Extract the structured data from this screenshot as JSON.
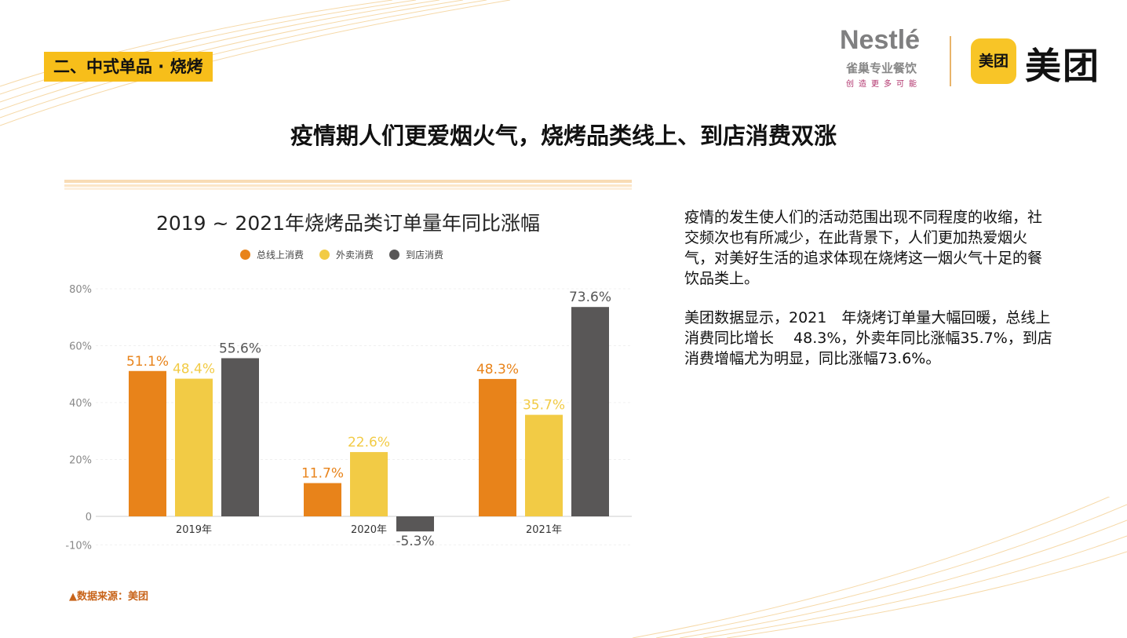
{
  "section_tag": "二、中式单品 · 烧烤",
  "logos": {
    "nestle_name": "Nestlé",
    "nestle_sub": "雀巢专业餐饮",
    "nestle_slogan": "创造更多可能",
    "meituan_badge": "美团",
    "meituan_text": "美团"
  },
  "headline": "疫情期人们更爱烟火气，烧烤品类线上、到店消费双涨",
  "paragraphs": [
    "疫情的发生使人们的活动范围出现不同程度的收缩，社交频次也有所减少，在此背景下，人们更加热爱烟火气，对美好生活的追求体现在烧烤这一烟火气十足的餐饮品类上。",
    "美团数据显示，2021　年烧烤订单量大幅回暖，总线上消费同比增长　 48.3%，外卖年同比涨幅35.7%，到店消费增幅尤为明显，同比涨幅73.6%。"
  ],
  "source": "▲数据来源：美团",
  "chart_data": {
    "type": "bar",
    "title": "2019 ~ 2021年烧烤品类订单量年同比涨幅",
    "categories": [
      "2019年",
      "2020年",
      "2021年"
    ],
    "series": [
      {
        "name": "总线上消费",
        "color": "#e8831a",
        "values": [
          51.1,
          11.7,
          48.3
        ],
        "labels": [
          "51.1%",
          "11.7%",
          "48.3%"
        ]
      },
      {
        "name": "外卖消费",
        "color": "#f2cb45",
        "values": [
          48.4,
          22.6,
          35.7
        ],
        "labels": [
          "48.4%",
          "22.6%",
          "35.7%"
        ]
      },
      {
        "name": "到店消费",
        "color": "#595757",
        "values": [
          55.6,
          -5.3,
          73.6
        ],
        "labels": [
          "55.6%",
          "-5.3%",
          "73.6%"
        ]
      }
    ],
    "yticks": [
      {
        "value": 80,
        "label": "80%"
      },
      {
        "value": 60,
        "label": "60%"
      },
      {
        "value": 40,
        "label": "40%"
      },
      {
        "value": 20,
        "label": "20%"
      },
      {
        "value": 0,
        "label": "0"
      },
      {
        "value": -10,
        "label": "-10%"
      }
    ],
    "ylim": [
      -10,
      80
    ],
    "legend": "top-center",
    "grid": true
  }
}
